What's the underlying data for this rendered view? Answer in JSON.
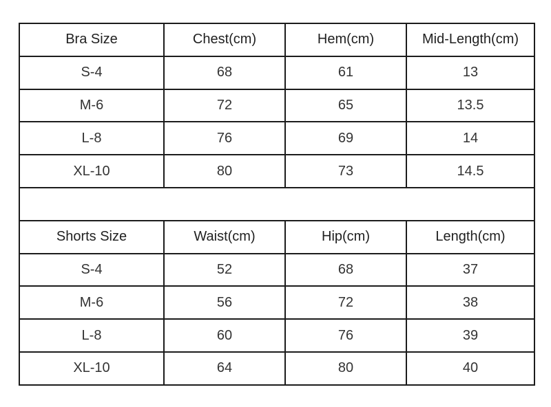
{
  "colors": {
    "background": "#ffffff",
    "border": "#1b1b1b",
    "header_text": "#1f1f1f",
    "cell_text": "#333333"
  },
  "chart_data": [
    {
      "type": "table",
      "columns": [
        "Bra Size",
        "Chest(cm)",
        "Hem(cm)",
        "Mid-Length(cm)"
      ],
      "rows": [
        [
          "S-4",
          "68",
          "61",
          "13"
        ],
        [
          "M-6",
          "72",
          "65",
          "13.5"
        ],
        [
          "L-8",
          "76",
          "69",
          "14"
        ],
        [
          "XL-10",
          "80",
          "73",
          "14.5"
        ]
      ]
    },
    {
      "type": "table",
      "columns": [
        "Shorts Size",
        "Waist(cm)",
        "Hip(cm)",
        "Length(cm)"
      ],
      "rows": [
        [
          "S-4",
          "52",
          "68",
          "37"
        ],
        [
          "M-6",
          "56",
          "72",
          "38"
        ],
        [
          "L-8",
          "60",
          "76",
          "39"
        ],
        [
          "XL-10",
          "64",
          "80",
          "40"
        ]
      ]
    }
  ]
}
